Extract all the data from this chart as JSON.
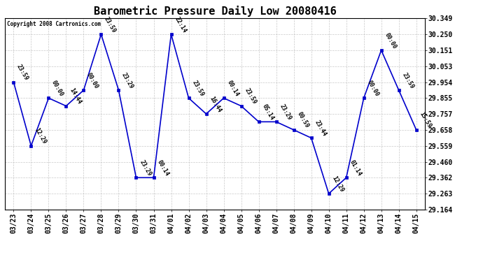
{
  "title": "Barometric Pressure Daily Low 20080416",
  "copyright": "Copyright 2008 Cartronics.com",
  "x_labels": [
    "03/23",
    "03/24",
    "03/25",
    "03/26",
    "03/27",
    "03/28",
    "03/29",
    "03/30",
    "03/31",
    "04/01",
    "04/02",
    "04/03",
    "04/04",
    "04/05",
    "04/06",
    "04/07",
    "04/08",
    "04/09",
    "04/10",
    "04/11",
    "04/12",
    "04/13",
    "04/14",
    "04/15"
  ],
  "y_values": [
    29.954,
    29.559,
    29.855,
    29.806,
    29.904,
    30.25,
    29.904,
    29.362,
    29.362,
    30.25,
    29.855,
    29.757,
    29.855,
    29.806,
    29.708,
    29.708,
    29.658,
    29.608,
    29.263,
    29.362,
    29.855,
    30.151,
    29.904,
    29.658
  ],
  "point_labels": [
    "23:59",
    "12:29",
    "00:00",
    "14:44",
    "00:00",
    "23:59",
    "23:29",
    "23:29",
    "00:14",
    "22:14",
    "23:59",
    "16:44",
    "00:14",
    "23:59",
    "05:14",
    "23:29",
    "00:59",
    "23:44",
    "12:29",
    "01:14",
    "00:00",
    "00:00",
    "23:59",
    "15:59"
  ],
  "y_min": 29.164,
  "y_max": 30.349,
  "y_ticks": [
    29.164,
    29.263,
    29.362,
    29.46,
    29.559,
    29.658,
    29.757,
    29.855,
    29.954,
    30.053,
    30.151,
    30.25,
    30.349
  ],
  "line_color": "#0000cc",
  "marker_color": "#0000cc",
  "bg_color": "#ffffff",
  "grid_color": "#bbbbbb",
  "title_fontsize": 11,
  "tick_fontsize": 7,
  "annotation_fontsize": 6
}
